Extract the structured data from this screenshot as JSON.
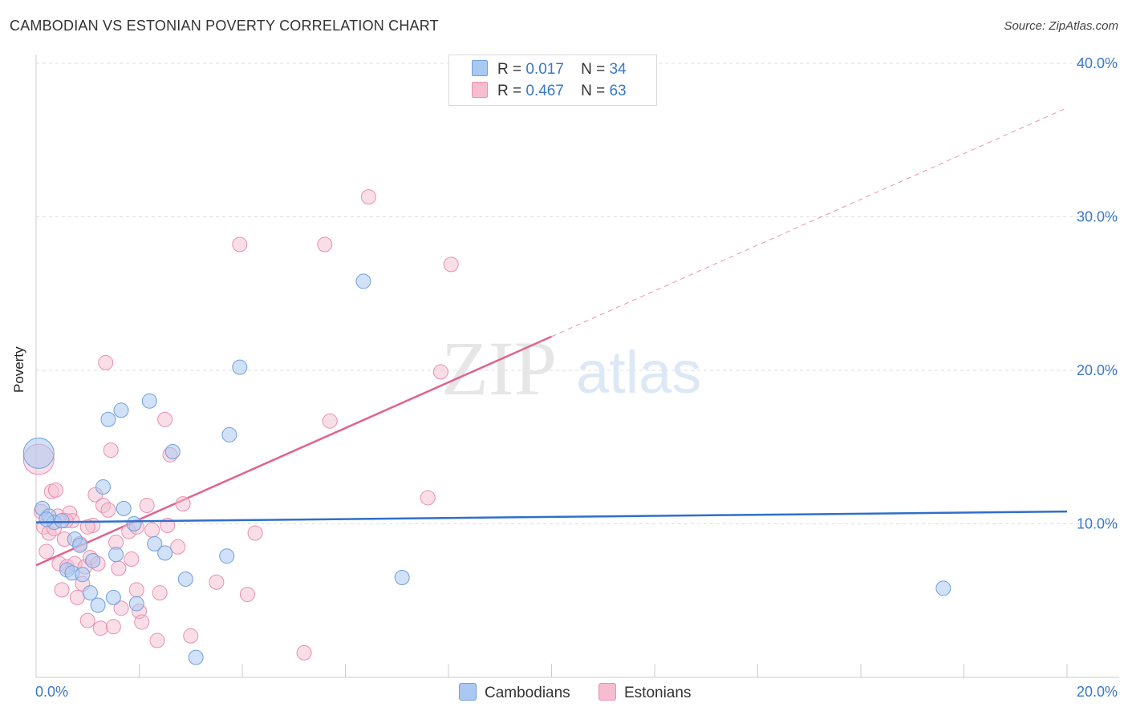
{
  "title": "CAMBODIAN VS ESTONIAN POVERTY CORRELATION CHART",
  "source": "Source: ZipAtlas.com",
  "watermark": {
    "zip": "ZIP",
    "atlas": "atlas"
  },
  "legend": {
    "rows": [
      {
        "r_label": "R =",
        "r_value": "0.017",
        "n_label": "N =",
        "n_value": "34"
      },
      {
        "r_label": "R =",
        "r_value": "0.467",
        "n_label": "N =",
        "n_value": "63"
      }
    ]
  },
  "bottom_legend": {
    "cambodians": "Cambodians",
    "estonians": "Estonians"
  },
  "colors": {
    "blue_fill": "#a9c8f2",
    "blue_stroke": "#6f9fdc",
    "blue_line": "#2f6fcc",
    "pink_fill": "#f6bdd0",
    "pink_stroke": "#e98fad",
    "pink_line": "#e0638b",
    "tick": "#3a78c8",
    "grid": "#dddddd"
  },
  "chart_data": {
    "type": "scatter",
    "title": "CAMBODIAN VS ESTONIAN POVERTY CORRELATION CHART",
    "xlabel": "",
    "ylabel": "Poverty",
    "xlim": [
      0,
      20
    ],
    "ylim": [
      0,
      40
    ],
    "x_tick_labels": [
      "0.0%",
      "20.0%"
    ],
    "y_ticks": [
      10,
      20,
      30,
      40
    ],
    "y_tick_labels": [
      "10.0%",
      "20.0%",
      "30.0%",
      "40.0%"
    ],
    "series": [
      {
        "name": "Cambodians",
        "r": 0.017,
        "n": 34,
        "trend": {
          "x0": 0,
          "y0": 10.1,
          "x1": 20,
          "y1": 10.8,
          "dashed_to": 20
        },
        "points": [
          {
            "x": 0.05,
            "y": 14.6,
            "big": true
          },
          {
            "x": 0.12,
            "y": 11.0
          },
          {
            "x": 0.25,
            "y": 10.5
          },
          {
            "x": 0.35,
            "y": 10.1
          },
          {
            "x": 0.5,
            "y": 10.2
          },
          {
            "x": 0.6,
            "y": 7.0
          },
          {
            "x": 0.7,
            "y": 6.8
          },
          {
            "x": 0.75,
            "y": 9.0
          },
          {
            "x": 0.85,
            "y": 8.6
          },
          {
            "x": 0.9,
            "y": 6.7
          },
          {
            "x": 1.05,
            "y": 5.5
          },
          {
            "x": 1.1,
            "y": 7.6
          },
          {
            "x": 1.2,
            "y": 4.7
          },
          {
            "x": 1.3,
            "y": 12.4
          },
          {
            "x": 1.4,
            "y": 16.8
          },
          {
            "x": 1.5,
            "y": 5.2
          },
          {
            "x": 1.55,
            "y": 8.0
          },
          {
            "x": 1.65,
            "y": 17.4
          },
          {
            "x": 1.7,
            "y": 11.0
          },
          {
            "x": 1.9,
            "y": 10.0
          },
          {
            "x": 1.95,
            "y": 4.8
          },
          {
            "x": 2.2,
            "y": 18.0
          },
          {
            "x": 2.3,
            "y": 8.7
          },
          {
            "x": 2.5,
            "y": 8.1
          },
          {
            "x": 2.65,
            "y": 14.7
          },
          {
            "x": 2.9,
            "y": 6.4
          },
          {
            "x": 3.1,
            "y": 1.3
          },
          {
            "x": 3.7,
            "y": 7.9
          },
          {
            "x": 3.75,
            "y": 15.8
          },
          {
            "x": 3.95,
            "y": 20.2
          },
          {
            "x": 6.35,
            "y": 25.8
          },
          {
            "x": 7.1,
            "y": 6.5
          },
          {
            "x": 17.6,
            "y": 5.8
          },
          {
            "x": 0.2,
            "y": 10.3
          }
        ]
      },
      {
        "name": "Estonians",
        "r": 0.467,
        "n": 63,
        "trend": {
          "x0": 0,
          "y0": 7.3,
          "x1": 10,
          "y1": 22.2,
          "dashed_to": 20
        },
        "points": [
          {
            "x": 0.05,
            "y": 14.2,
            "big": true
          },
          {
            "x": 0.1,
            "y": 10.8
          },
          {
            "x": 0.15,
            "y": 9.8
          },
          {
            "x": 0.2,
            "y": 8.2
          },
          {
            "x": 0.25,
            "y": 9.4
          },
          {
            "x": 0.3,
            "y": 12.1
          },
          {
            "x": 0.35,
            "y": 9.7
          },
          {
            "x": 0.38,
            "y": 12.2
          },
          {
            "x": 0.42,
            "y": 10.5
          },
          {
            "x": 0.45,
            "y": 7.4
          },
          {
            "x": 0.5,
            "y": 5.7
          },
          {
            "x": 0.55,
            "y": 9.0
          },
          {
            "x": 0.6,
            "y": 7.2
          },
          {
            "x": 0.65,
            "y": 10.7
          },
          {
            "x": 0.7,
            "y": 10.2
          },
          {
            "x": 0.75,
            "y": 7.4
          },
          {
            "x": 0.8,
            "y": 5.2
          },
          {
            "x": 0.85,
            "y": 8.7
          },
          {
            "x": 0.9,
            "y": 6.1
          },
          {
            "x": 0.95,
            "y": 7.2
          },
          {
            "x": 1.0,
            "y": 3.7
          },
          {
            "x": 1.05,
            "y": 7.8
          },
          {
            "x": 1.1,
            "y": 9.9
          },
          {
            "x": 1.15,
            "y": 11.9
          },
          {
            "x": 1.2,
            "y": 7.4
          },
          {
            "x": 1.25,
            "y": 3.2
          },
          {
            "x": 1.3,
            "y": 11.2
          },
          {
            "x": 1.35,
            "y": 20.5
          },
          {
            "x": 1.4,
            "y": 10.9
          },
          {
            "x": 1.45,
            "y": 14.8
          },
          {
            "x": 1.5,
            "y": 3.3
          },
          {
            "x": 1.55,
            "y": 8.8
          },
          {
            "x": 1.6,
            "y": 7.1
          },
          {
            "x": 1.65,
            "y": 4.5
          },
          {
            "x": 1.8,
            "y": 9.5
          },
          {
            "x": 1.85,
            "y": 7.7
          },
          {
            "x": 1.95,
            "y": 5.7
          },
          {
            "x": 2.0,
            "y": 4.3
          },
          {
            "x": 2.05,
            "y": 3.6
          },
          {
            "x": 2.15,
            "y": 11.2
          },
          {
            "x": 2.25,
            "y": 9.6
          },
          {
            "x": 2.35,
            "y": 2.4
          },
          {
            "x": 2.4,
            "y": 5.5
          },
          {
            "x": 2.5,
            "y": 16.8
          },
          {
            "x": 2.6,
            "y": 14.5
          },
          {
            "x": 2.75,
            "y": 8.5
          },
          {
            "x": 2.85,
            "y": 11.3
          },
          {
            "x": 3.0,
            "y": 2.7
          },
          {
            "x": 3.5,
            "y": 6.2
          },
          {
            "x": 3.95,
            "y": 28.2
          },
          {
            "x": 4.1,
            "y": 5.4
          },
          {
            "x": 4.25,
            "y": 9.4
          },
          {
            "x": 5.2,
            "y": 1.6
          },
          {
            "x": 5.6,
            "y": 28.2
          },
          {
            "x": 5.7,
            "y": 16.7
          },
          {
            "x": 6.45,
            "y": 31.3
          },
          {
            "x": 7.6,
            "y": 11.7
          },
          {
            "x": 7.85,
            "y": 19.9
          },
          {
            "x": 8.05,
            "y": 26.9
          },
          {
            "x": 1.0,
            "y": 9.8
          },
          {
            "x": 0.58,
            "y": 10.2
          },
          {
            "x": 2.55,
            "y": 9.9
          },
          {
            "x": 1.95,
            "y": 9.8
          }
        ]
      }
    ]
  }
}
